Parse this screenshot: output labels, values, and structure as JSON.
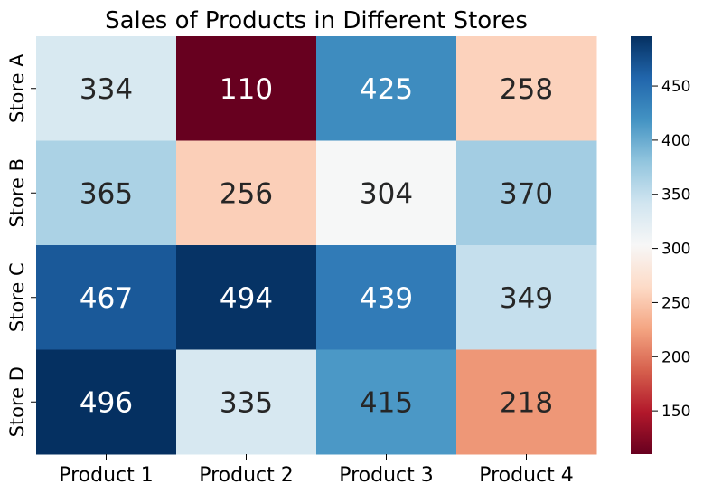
{
  "chart_data": {
    "type": "heatmap",
    "title": "Sales of Products in Different Stores",
    "xlabel": "",
    "ylabel": "",
    "x_categories": [
      "Product 1",
      "Product 2",
      "Product 3",
      "Product 4"
    ],
    "y_categories": [
      "Store A",
      "Store B",
      "Store C",
      "Store D"
    ],
    "values": [
      [
        334,
        110,
        425,
        258
      ],
      [
        365,
        256,
        304,
        370
      ],
      [
        467,
        494,
        439,
        349
      ],
      [
        496,
        335,
        415,
        218
      ]
    ],
    "colormap": "RdBu",
    "vmin": 110,
    "vmax": 496,
    "colorbar_ticks": [
      150,
      200,
      250,
      300,
      350,
      400,
      450
    ],
    "colors": {
      "low": "#67001f",
      "high": "#053061",
      "light_text": "#ffffff",
      "dark_text": "#262626"
    }
  }
}
